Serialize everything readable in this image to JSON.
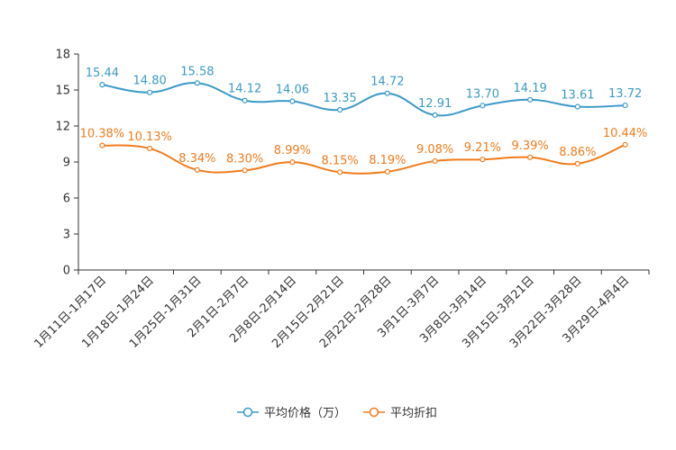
{
  "chart_data": {
    "type": "line",
    "title": "",
    "xlabel": "",
    "ylabel": "",
    "ylim": [
      0,
      18
    ],
    "yticks": [
      0,
      3,
      6,
      9,
      12,
      15,
      18
    ],
    "grid": false,
    "legend_position": "bottom-center",
    "categories": [
      "1月11日-1月17日",
      "1月18日-1月24日",
      "1月25日-1月31日",
      "2月1日-2月7日",
      "2月8日-2月14日",
      "2月15日-2月21日",
      "2月22日-2月28日",
      "3月1日-3月7日",
      "3月8日-3月14日",
      "3月15日-3月21日",
      "3月22日-3月28日",
      "3月29日-4月4日"
    ],
    "series": [
      {
        "name": "平均价格（万）",
        "color": "#3b9ac9",
        "values": [
          15.44,
          14.8,
          15.58,
          14.12,
          14.06,
          13.35,
          14.72,
          12.91,
          13.7,
          14.19,
          13.61,
          13.72
        ],
        "labels": [
          "15.44",
          "14.80",
          "15.58",
          "14.12",
          "14.06",
          "13.35",
          "14.72",
          "12.91",
          "13.70",
          "14.19",
          "13.61",
          "13.72"
        ]
      },
      {
        "name": "平均折扣",
        "color": "#f07c1c",
        "values": [
          10.38,
          10.13,
          8.34,
          8.3,
          8.99,
          8.15,
          8.19,
          9.08,
          9.21,
          9.39,
          8.86,
          10.44
        ],
        "labels": [
          "10.38%",
          "10.13%",
          "8.34%",
          "8.30%",
          "8.99%",
          "8.15%",
          "8.19%",
          "9.08%",
          "9.21%",
          "9.39%",
          "8.86%",
          "10.44%"
        ]
      }
    ]
  }
}
